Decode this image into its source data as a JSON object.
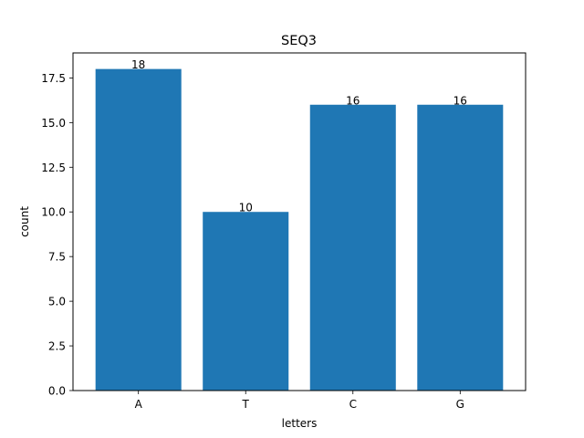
{
  "chart_data": {
    "type": "bar",
    "title": "SEQ3",
    "xlabel": "letters",
    "ylabel": "count",
    "categories": [
      "A",
      "T",
      "C",
      "G"
    ],
    "values": [
      18,
      10,
      16,
      16
    ],
    "data_labels": [
      "18",
      "10",
      "16",
      "16"
    ],
    "ylim": [
      0,
      18.9
    ],
    "yticks": [
      0,
      2.5,
      5,
      7.5,
      10,
      12.5,
      15,
      17.5
    ],
    "ytick_labels": [
      "0.0",
      "2.5",
      "5.0",
      "7.5",
      "10.0",
      "12.5",
      "15.0",
      "17.5"
    ],
    "bar_color": "#1f77b4",
    "grid": false,
    "legend": "none"
  }
}
